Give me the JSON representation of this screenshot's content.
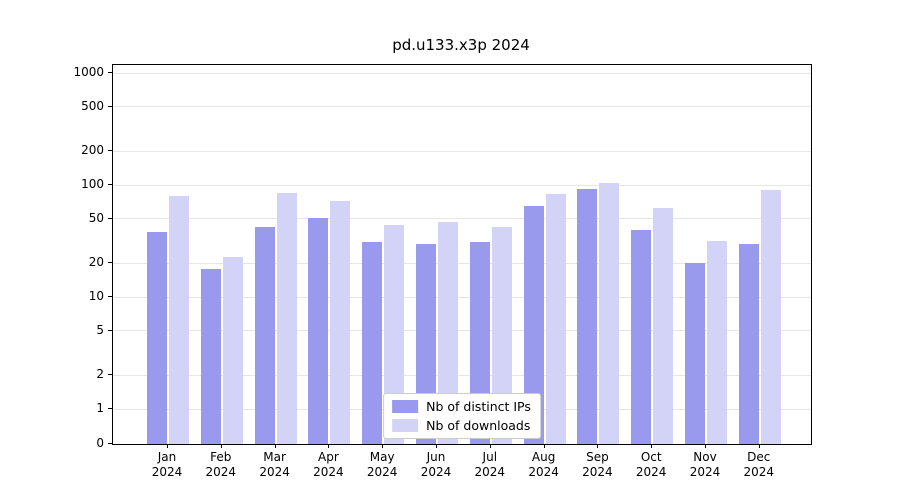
{
  "title": "pd.u133.x3p 2024",
  "chart_data": {
    "type": "bar",
    "yscale": "symlog",
    "title": "pd.u133.x3p 2024",
    "categories": [
      "Jan",
      "Feb",
      "Mar",
      "Apr",
      "May",
      "Jun",
      "Jul",
      "Aug",
      "Sep",
      "Oct",
      "Nov",
      "Dec"
    ],
    "xtick_year": "2024",
    "series": [
      {
        "name": "Nb of distinct IPs",
        "color": "#9999ed",
        "values": [
          38,
          18,
          42,
          51,
          31,
          30,
          31,
          65,
          92,
          40,
          20,
          30
        ]
      },
      {
        "name": "Nb of downloads",
        "color": "#d3d3f8",
        "values": [
          80,
          23,
          85,
          72,
          44,
          47,
          42,
          83,
          105,
          62,
          32,
          90
        ]
      }
    ],
    "yticks": [
      0,
      1,
      2,
      5,
      10,
      20,
      50,
      100,
      200,
      500,
      1000
    ],
    "ylim": [
      0,
      1200
    ],
    "grid": true,
    "legend_position": "lower center"
  }
}
